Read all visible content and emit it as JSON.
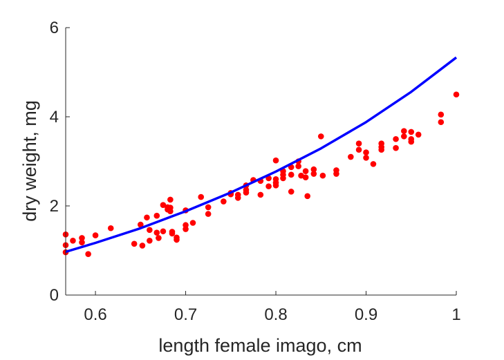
{
  "chart_data": {
    "type": "scatter",
    "title": "",
    "xlabel": "length female imago, cm",
    "ylabel": "dry weight, mg",
    "xlim": [
      0.567,
      1.0
    ],
    "ylim": [
      0,
      6
    ],
    "xticks": [
      0.6,
      0.7,
      0.8,
      0.9,
      1.0
    ],
    "xtick_labels": [
      "0.6",
      "0.7",
      "0.8",
      "0.9",
      "1"
    ],
    "yticks": [
      0,
      2,
      4,
      6
    ],
    "ytick_labels": [
      "0",
      "2",
      "4",
      "6"
    ],
    "grid": false,
    "legend": "none",
    "colors": {
      "points": "#ff0000",
      "curve": "#0000ff",
      "axes": "#262626"
    },
    "series": [
      {
        "type": "scatter",
        "x": [
          0.567,
          0.567,
          0.567,
          0.575,
          0.585,
          0.585,
          0.592,
          0.6,
          0.617,
          0.643,
          0.65,
          0.652,
          0.657,
          0.66,
          0.66,
          0.668,
          0.668,
          0.67,
          0.675,
          0.675,
          0.68,
          0.68,
          0.683,
          0.683,
          0.683,
          0.685,
          0.685,
          0.69,
          0.69,
          0.7,
          0.7,
          0.7,
          0.708,
          0.717,
          0.725,
          0.725,
          0.742,
          0.75,
          0.75,
          0.758,
          0.758,
          0.767,
          0.767,
          0.767,
          0.775,
          0.783,
          0.783,
          0.792,
          0.792,
          0.8,
          0.8,
          0.8,
          0.8,
          0.808,
          0.808,
          0.808,
          0.817,
          0.817,
          0.817,
          0.825,
          0.825,
          0.828,
          0.833,
          0.833,
          0.835,
          0.842,
          0.842,
          0.85,
          0.852,
          0.867,
          0.867,
          0.883,
          0.892,
          0.892,
          0.9,
          0.9,
          0.908,
          0.917,
          0.917,
          0.917,
          0.933,
          0.933,
          0.942,
          0.942,
          0.95,
          0.95,
          0.95,
          0.958,
          0.983,
          0.983,
          1.0
        ],
        "y": [
          1.36,
          1.12,
          0.96,
          1.22,
          1.28,
          1.18,
          0.92,
          1.34,
          1.5,
          1.15,
          1.58,
          1.11,
          1.74,
          1.46,
          1.22,
          1.78,
          1.4,
          1.28,
          2.02,
          1.43,
          1.97,
          1.92,
          2.14,
          1.96,
          1.88,
          1.42,
          1.38,
          1.29,
          1.24,
          1.9,
          1.57,
          1.48,
          1.62,
          2.2,
          1.97,
          1.82,
          2.1,
          2.29,
          2.26,
          2.25,
          2.18,
          2.46,
          2.36,
          2.3,
          2.58,
          2.56,
          2.25,
          2.62,
          2.44,
          3.02,
          2.6,
          2.52,
          2.46,
          2.78,
          2.7,
          2.62,
          2.87,
          2.7,
          2.32,
          3.0,
          2.89,
          2.68,
          2.78,
          2.64,
          2.22,
          2.82,
          2.72,
          3.56,
          2.68,
          2.8,
          2.72,
          3.1,
          3.4,
          3.26,
          3.2,
          3.08,
          2.94,
          3.4,
          3.32,
          3.26,
          3.5,
          3.3,
          3.68,
          3.56,
          3.66,
          3.5,
          3.44,
          3.6,
          4.05,
          3.88,
          4.5
        ]
      },
      {
        "type": "line",
        "x": [
          0.567,
          0.6,
          0.65,
          0.7,
          0.75,
          0.8,
          0.85,
          0.9,
          0.95,
          1.0
        ],
        "y": [
          0.97,
          1.17,
          1.5,
          1.88,
          2.3,
          2.77,
          3.29,
          3.88,
          4.56,
          5.33
        ]
      }
    ]
  }
}
